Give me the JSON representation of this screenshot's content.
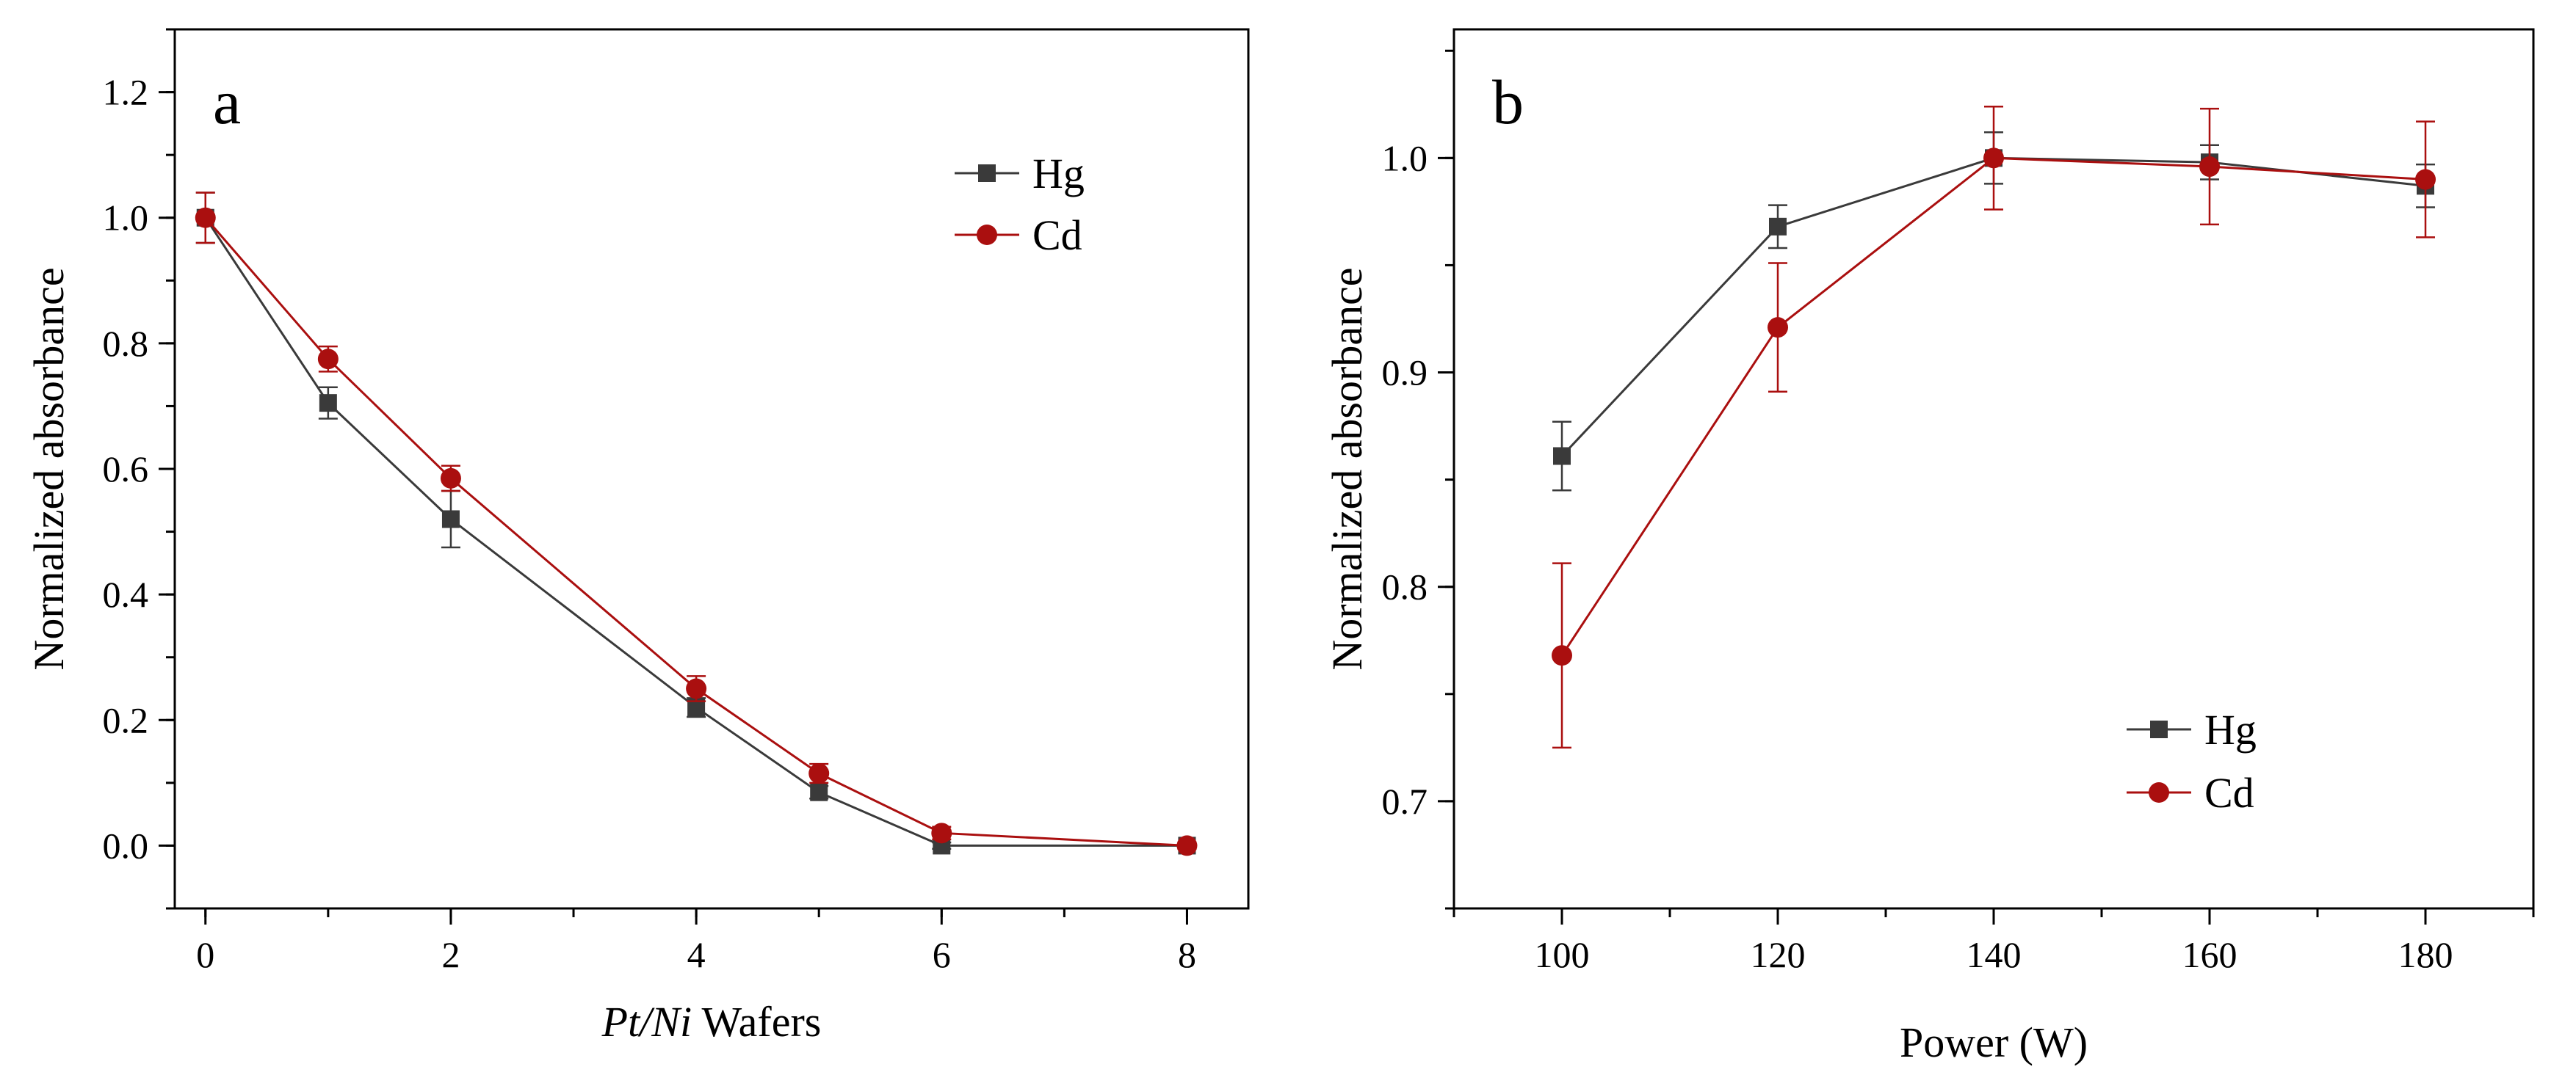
{
  "colors": {
    "hg": "#3a3a3a",
    "cd": "#aa0f0f",
    "axis": "#000000"
  },
  "chart_data": [
    {
      "type": "line",
      "panel_label": "a",
      "xlabel_italic": "Pt/Ni",
      "xlabel_rest": " Wafers",
      "ylabel": "Normalized absorbance",
      "xlim": [
        -0.25,
        8.5
      ],
      "ylim": [
        -0.1,
        1.3
      ],
      "xticks": [
        0,
        2,
        4,
        6,
        8
      ],
      "xtick_labels": [
        "0",
        "2",
        "4",
        "6",
        "8"
      ],
      "yticks": [
        0.0,
        0.2,
        0.4,
        0.6,
        0.8,
        1.0,
        1.2
      ],
      "ytick_labels": [
        "0.0",
        "0.2",
        "0.4",
        "0.6",
        "0.8",
        "1.0",
        "1.2"
      ],
      "legend_position": "top-right",
      "series": [
        {
          "name": "Hg",
          "marker": "square",
          "color_key": "hg",
          "x": [
            0,
            1,
            2,
            4,
            5,
            6,
            8
          ],
          "y": [
            1.0,
            0.705,
            0.52,
            0.22,
            0.085,
            0.0,
            0.0
          ],
          "err": [
            0.04,
            0.025,
            0.045,
            0.015,
            0.01,
            0.005,
            0.005
          ]
        },
        {
          "name": "Cd",
          "marker": "circle",
          "color_key": "cd",
          "x": [
            0,
            1,
            2,
            4,
            5,
            6,
            8
          ],
          "y": [
            1.0,
            0.775,
            0.585,
            0.25,
            0.115,
            0.02,
            0.0
          ],
          "err": [
            0.04,
            0.02,
            0.02,
            0.02,
            0.015,
            0.01,
            0.005
          ]
        }
      ]
    },
    {
      "type": "line",
      "panel_label": "b",
      "xlabel": "Power (W)",
      "ylabel": "Normalized absorbance",
      "xlim": [
        90,
        190
      ],
      "ylim": [
        0.65,
        1.06
      ],
      "xticks": [
        100,
        120,
        140,
        160,
        180
      ],
      "xtick_labels": [
        "100",
        "120",
        "140",
        "160",
        "180"
      ],
      "yticks": [
        0.7,
        0.8,
        0.9,
        1.0
      ],
      "ytick_labels": [
        "0.7",
        "0.8",
        "0.9",
        "1.0"
      ],
      "legend_position": "bottom-right",
      "series": [
        {
          "name": "Hg",
          "marker": "square",
          "color_key": "hg",
          "x": [
            100,
            120,
            140,
            160,
            180
          ],
          "y": [
            0.861,
            0.968,
            1.0,
            0.998,
            0.987
          ],
          "err": [
            0.016,
            0.01,
            0.012,
            0.008,
            0.01
          ]
        },
        {
          "name": "Cd",
          "marker": "circle",
          "color_key": "cd",
          "x": [
            100,
            120,
            140,
            160,
            180
          ],
          "y": [
            0.768,
            0.921,
            1.0,
            0.996,
            0.99
          ],
          "err": [
            0.043,
            0.03,
            0.024,
            0.027,
            0.027
          ]
        }
      ]
    }
  ]
}
